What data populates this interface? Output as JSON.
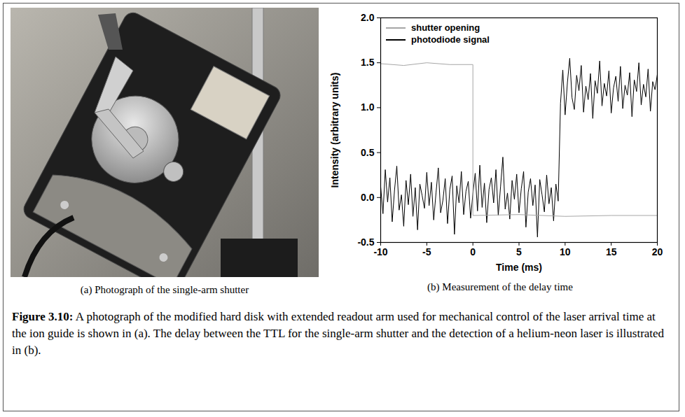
{
  "chart_data": {
    "type": "line",
    "x_label": "Time (ms)",
    "y_label": "Intensity (arbitrary units)",
    "xlim": [
      -10,
      20
    ],
    "xticks": [
      -10,
      -5,
      0,
      5,
      10,
      15,
      20
    ],
    "ylim": [
      -0.5,
      2.0
    ],
    "yticks": [
      -0.5,
      {
        "value": 0,
        "label": "0.0"
      },
      0.5,
      {
        "value": 1,
        "label": "1.0"
      },
      1.5,
      {
        "value": 2,
        "label": "2.0"
      }
    ],
    "legend": "top-left",
    "series": [
      {
        "name": "shutter opening",
        "color": "#a6a6a6",
        "x": [
          -10,
          -7.5,
          -5,
          -2.5,
          0,
          0,
          5,
          10,
          15,
          20
        ],
        "values": [
          1.49,
          1.47,
          1.5,
          1.48,
          1.48,
          -0.2,
          -0.19,
          -0.21,
          -0.2,
          -0.2
        ]
      },
      {
        "name": "photodiode signal",
        "color": "#000000",
        "x": [
          -10,
          -9.75,
          -9.5,
          -9.25,
          -9,
          -8.75,
          -8.5,
          -8.25,
          -8,
          -7.75,
          -7.5,
          -7.25,
          -7,
          -6.75,
          -6.5,
          -6.25,
          -6,
          -5.75,
          -5.5,
          -5.25,
          -5,
          -4.75,
          -4.5,
          -4.25,
          -4,
          -3.75,
          -3.5,
          -3.25,
          -3,
          -2.75,
          -2.5,
          -2.25,
          -2,
          -1.75,
          -1.5,
          -1.25,
          -1,
          -0.75,
          -0.5,
          -0.25,
          0,
          0.25,
          0.5,
          0.75,
          1,
          1.25,
          1.5,
          1.75,
          2,
          2.25,
          2.5,
          2.75,
          3,
          3.25,
          3.5,
          3.75,
          4,
          4.25,
          4.5,
          4.75,
          5,
          5.25,
          5.5,
          5.75,
          6,
          6.25,
          6.5,
          6.75,
          7,
          7.25,
          7.5,
          7.75,
          8,
          8.25,
          8.5,
          8.75,
          9,
          9.25,
          9.5,
          9.75,
          10,
          10.25,
          10.5,
          10.75,
          11,
          11.25,
          11.5,
          11.75,
          12,
          12.25,
          12.5,
          12.75,
          13,
          13.25,
          13.5,
          13.75,
          14,
          14.25,
          14.5,
          14.75,
          15,
          15.25,
          15.5,
          15.75,
          16,
          16.25,
          16.5,
          16.75,
          17,
          17.25,
          17.5,
          17.75,
          18,
          18.25,
          18.5,
          18.75,
          19,
          19.25,
          19.5,
          19.75,
          20
        ],
        "values": [
          0.12,
          -0.18,
          0.31,
          -0.05,
          0.22,
          -0.27,
          0.08,
          0.35,
          -0.14,
          0.03,
          -0.32,
          0.19,
          -0.08,
          0.26,
          -0.21,
          0.11,
          -0.36,
          0.15,
          0.02,
          -0.12,
          0.28,
          -0.09,
          0.17,
          -0.25,
          0.05,
          0.33,
          -0.17,
          -0.03,
          0.21,
          -0.29,
          0.09,
          0.24,
          -0.41,
          0.13,
          -0.06,
          0.29,
          -0.19,
          0.07,
          0.18,
          -0.23,
          0.04,
          0.27,
          -0.15,
          0.36,
          -0.11,
          0.16,
          -0.28,
          0.09,
          0.22,
          -0.06,
          0.31,
          -0.2,
          0.12,
          0.45,
          -0.13,
          0.05,
          -0.24,
          0.19,
          -0.02,
          0.26,
          -0.17,
          0.1,
          0.29,
          -0.33,
          0.06,
          0.21,
          -0.09,
          0.14,
          -0.44,
          0.2,
          0.03,
          -0.16,
          0.25,
          -0.07,
          0.11,
          -0.26,
          0.15,
          -0.04,
          1.05,
          1.42,
          0.92,
          1.28,
          1.55,
          1.11,
          0.98,
          1.36,
          1.19,
          1.47,
          0.95,
          1.24,
          1.09,
          1.38,
          0.88,
          1.3,
          1.16,
          1.52,
          1.02,
          1.27,
          1.13,
          1.41,
          0.94,
          1.22,
          1.35,
          1.07,
          1.46,
          0.99,
          1.25,
          1.14,
          1.39,
          0.9,
          1.31,
          1.18,
          1.5,
          1.03,
          1.26,
          1.12,
          1.43,
          0.96,
          1.29,
          1.2,
          1.37
        ]
      }
    ]
  },
  "panels": [
    {
      "caption": "(a) Photograph of the single-arm shutter"
    },
    {
      "caption": "(b) Measurement of the delay time"
    }
  ],
  "caption": {
    "label": "Figure 3.10:",
    "text": "A photograph of the modified hard disk with extended readout arm used for mechanical control of the laser arrival time at the ion guide is shown in (a). The delay between the TTL for the single-arm shutter and the detection of a helium-neon laser is illustrated in (b)."
  }
}
